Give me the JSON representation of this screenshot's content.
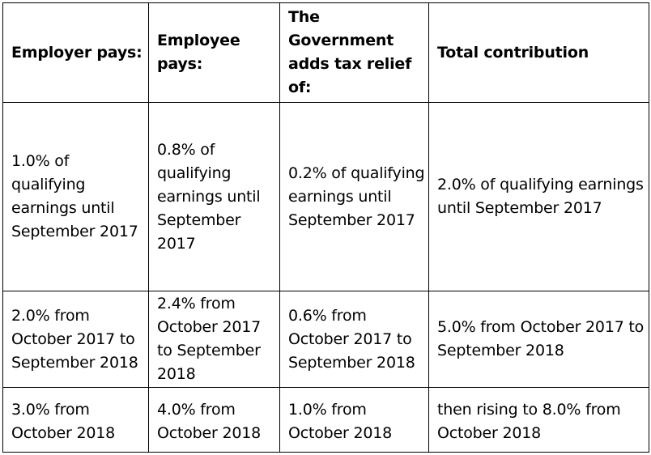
{
  "table": {
    "headers": [
      "Employer pays:",
      "Employee pays:",
      "The Government adds tax relief of:",
      "Total contribution"
    ],
    "rows": [
      [
        "1.0% of qualifying earnings until September 2017",
        "0.8% of qualifying earnings until September 2017",
        "0.2% of qualifying earnings until September 2017",
        "2.0% of qualifying earnings until September 2017"
      ],
      [
        "2.0% from October 2017 to September 2018",
        "2.4% from October 2017 to September 2018",
        "0.6% from October 2017 to September 2018",
        "5.0% from October 2017 to September 2018"
      ],
      [
        "3.0% from October 2018",
        "4.0% from October 2018",
        "1.0% from October 2018",
        "then rising to 8.0% from October 2018"
      ]
    ]
  }
}
